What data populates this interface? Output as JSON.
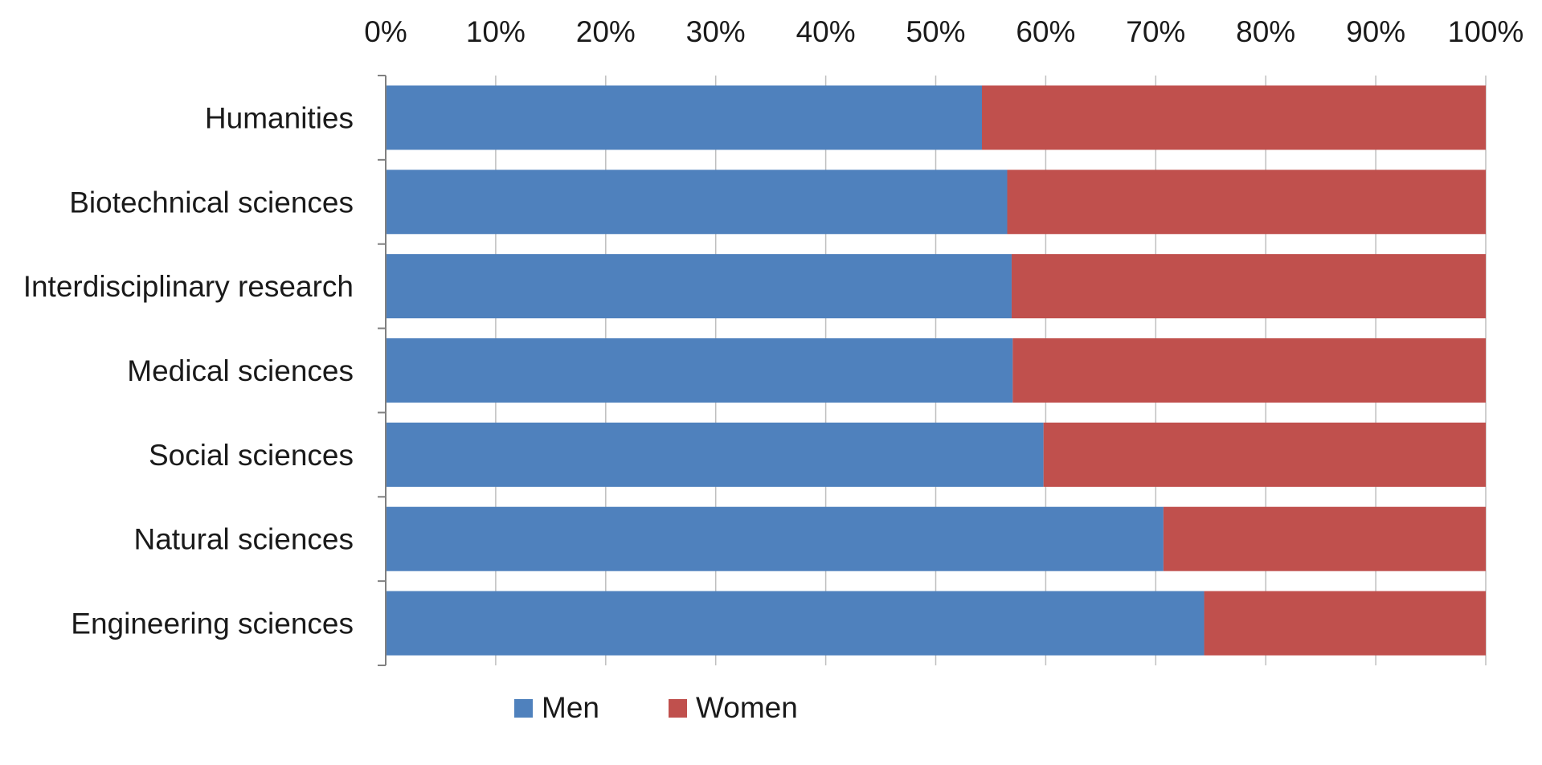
{
  "chart_data": {
    "type": "bar",
    "orientation": "horizontal",
    "stacking": "percent",
    "categories": [
      "Humanities",
      "Biotechnical sciences",
      "Interdisciplinary research",
      "Medical sciences",
      "Social sciences",
      "Natural sciences",
      "Engineering sciences"
    ],
    "series": [
      {
        "name": "Men",
        "color": "#4f81bd",
        "values": [
          54.2,
          56.5,
          56.9,
          57.0,
          59.8,
          70.7,
          74.4
        ]
      },
      {
        "name": "Women",
        "color": "#c0504d",
        "values": [
          45.8,
          43.5,
          43.1,
          43.0,
          40.2,
          29.3,
          25.6
        ]
      }
    ],
    "x_ticks": [
      "0%",
      "10%",
      "20%",
      "30%",
      "40%",
      "50%",
      "60%",
      "70%",
      "80%",
      "90%",
      "100%"
    ],
    "xlim": [
      0,
      100
    ],
    "x_axis_position": "top",
    "grid": true,
    "legend_position": "bottom",
    "title": "",
    "xlabel": "",
    "ylabel": ""
  }
}
